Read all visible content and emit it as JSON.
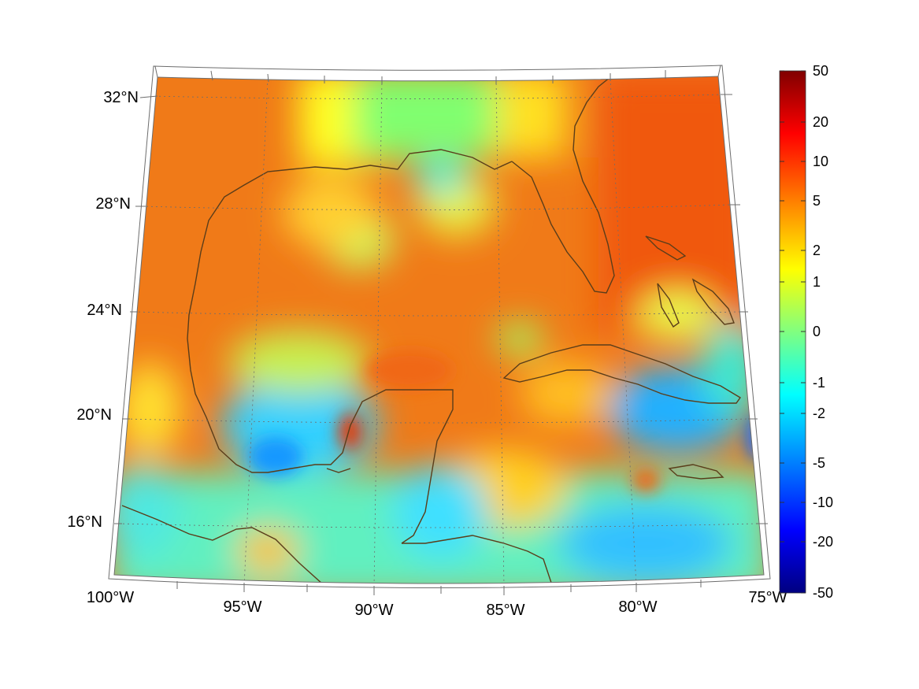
{
  "map": {
    "lat_labels": [
      "32°N",
      "28°N",
      "24°N",
      "20°N",
      "16°N"
    ],
    "lon_labels": [
      "100°W",
      "95°W",
      "90°W",
      "85°W",
      "80°W",
      "75°W"
    ],
    "coast_color": "#5a3d1a",
    "grid_color": "#6d6d6d"
  },
  "colorbar": {
    "tick_labels": [
      "50",
      "20",
      "10",
      "5",
      "2",
      "1",
      "0",
      "-1",
      "-2",
      "-5",
      "-10",
      "-20",
      "-50"
    ],
    "colors": [
      "#800000",
      "#ff0000",
      "#ff8000",
      "#ffff00",
      "#80ff80",
      "#00ffff",
      "#0080ff",
      "#0000ff",
      "#000080"
    ]
  }
}
